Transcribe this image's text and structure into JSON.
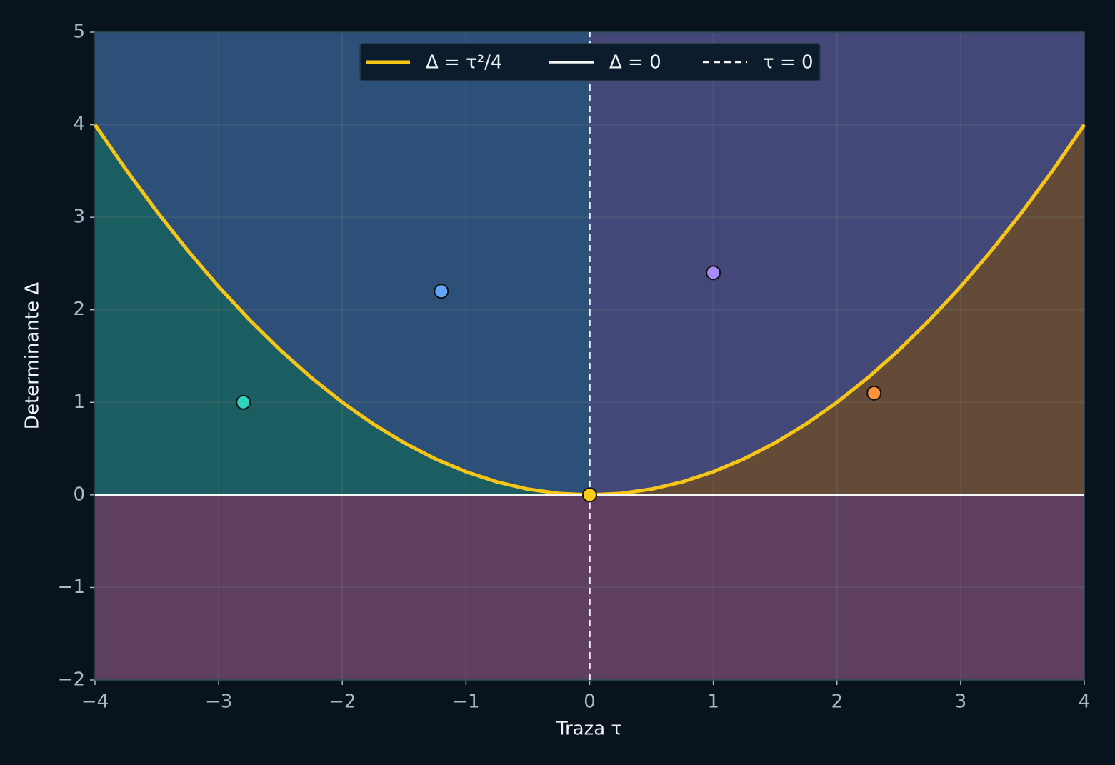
{
  "chart_data": {
    "type": "line",
    "xlabel": "Traza τ",
    "ylabel": "Determinante Δ",
    "xlim": [
      -4,
      4
    ],
    "ylim": [
      -2,
      5
    ],
    "xticks": [
      {
        "value": -4,
        "label": "−4"
      },
      {
        "value": -3,
        "label": "−3"
      },
      {
        "value": -2,
        "label": "−2"
      },
      {
        "value": -1,
        "label": "−1"
      },
      0,
      1,
      2,
      3,
      4
    ],
    "yticks": [
      {
        "value": -2,
        "label": "−2"
      },
      {
        "value": -1,
        "label": "−1"
      },
      0,
      1,
      2,
      3,
      4,
      5
    ],
    "grid": true,
    "legend": "upper center",
    "regions": {
      "below_zero": "#5e3f62",
      "left_under": "#1b5e62",
      "left_over": "#2c5078",
      "right_over": "#444878",
      "right_under": "#634b38"
    },
    "series": [
      {
        "name": "Δ = τ²/4",
        "color": "#f5c518",
        "width": 5,
        "dashed": false,
        "x": [
          -4,
          -3.75,
          -3.5,
          -3.25,
          -3,
          -2.75,
          -2.5,
          -2.25,
          -2,
          -1.75,
          -1.5,
          -1.25,
          -1,
          -0.75,
          -0.5,
          -0.25,
          0,
          0.25,
          0.5,
          0.75,
          1,
          1.25,
          1.5,
          1.75,
          2,
          2.25,
          2.5,
          2.75,
          3,
          3.25,
          3.5,
          3.75,
          4
        ],
        "values": [
          4,
          3.515625,
          3.0625,
          2.640625,
          2.25,
          1.890625,
          1.5625,
          1.265625,
          1,
          0.765625,
          0.5625,
          0.390625,
          0.25,
          0.140625,
          0.0625,
          0.015625,
          0,
          0.015625,
          0.0625,
          0.140625,
          0.25,
          0.390625,
          0.5625,
          0.765625,
          1,
          1.265625,
          1.5625,
          1.890625,
          2.25,
          2.640625,
          3.0625,
          3.515625,
          4
        ]
      },
      {
        "name": "Δ = 0",
        "color": "#f4f6f8",
        "width": 3.5,
        "dashed": false,
        "x": [
          -4,
          4
        ],
        "values": [
          0,
          0
        ]
      },
      {
        "name": "τ = 0",
        "color": "#f4f6f8",
        "width": 2.5,
        "dashed": true,
        "x": [
          0,
          0
        ],
        "values": [
          -2,
          5
        ]
      }
    ],
    "points": {
      "x": [
        -2.8,
        -1.2,
        0,
        1.0,
        2.3
      ],
      "values": [
        1.0,
        2.2,
        0,
        2.4,
        1.1
      ],
      "colors": [
        "#2dd4bf",
        "#60a5fa",
        "#facc15",
        "#a78bfa",
        "#fb923c"
      ]
    }
  }
}
